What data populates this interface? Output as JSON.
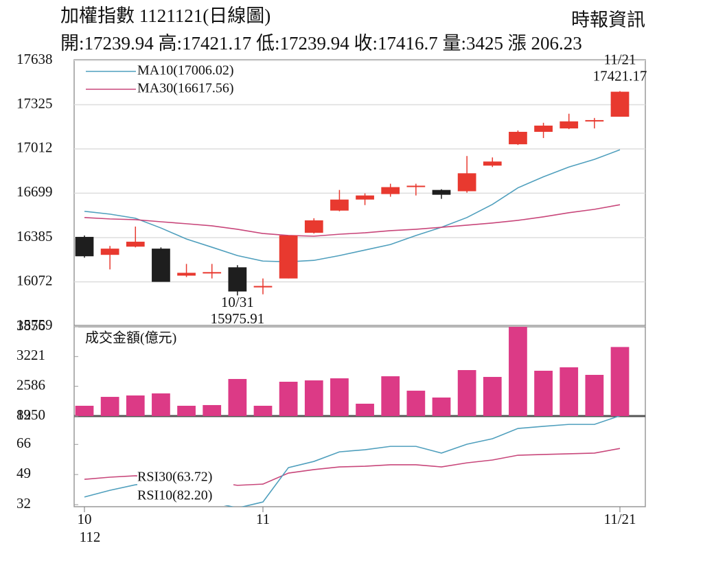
{
  "chart_data": [
    {
      "type": "candlestick",
      "title": "加權指數 1121121(日線圖)",
      "source": "時報資訊",
      "subtitle": "開:17239.94 高:17421.17 低:17239.94 收:17416.7 量:3425 漲 206.23",
      "open": [
        16390,
        16263,
        16321,
        16307,
        16116,
        16136,
        16175,
        16033,
        16096,
        16419,
        16576,
        16654,
        16693,
        16747,
        16722,
        16713,
        16894,
        17045,
        17133,
        17157,
        17211,
        17239.94
      ],
      "high": [
        16400,
        16326,
        16463,
        16316,
        16199,
        16199,
        16190,
        16096,
        16400,
        16522,
        16722,
        16698,
        16766,
        16766,
        16727,
        16962,
        16952,
        17143,
        17197,
        17261,
        17231,
        17421.17
      ],
      "low": [
        16243,
        16160,
        16316,
        16072,
        16106,
        16096,
        15975.91,
        15984,
        16096,
        16414,
        16571,
        16615,
        16674,
        16683,
        16659,
        16703,
        16884,
        17040,
        17089,
        17152,
        17157,
        17239.94
      ],
      "close": [
        16253,
        16307,
        16356,
        16072,
        16136,
        16141,
        16004,
        16043,
        16400,
        16507,
        16654,
        16683,
        16742,
        16752,
        16688,
        16840,
        16923,
        17133,
        17177,
        17207,
        17216,
        17416.7
      ],
      "up_color": "#e8392f",
      "down_color": "#1e1e1e",
      "series": [
        {
          "name": "MA10(17006.02)",
          "color": "#4f9fbd",
          "values": [
            16571,
            16551,
            16522,
            16453,
            16375,
            16317,
            16258,
            16219,
            16214,
            16224,
            16258,
            16297,
            16336,
            16400,
            16458,
            16527,
            16620,
            16737,
            16815,
            16884,
            16938,
            17006.02
          ]
        },
        {
          "name": "MA30(16617.56)",
          "color": "#c8467a",
          "values": [
            16527,
            16517,
            16512,
            16497,
            16483,
            16468,
            16444,
            16414,
            16400,
            16395,
            16409,
            16419,
            16434,
            16444,
            16458,
            16473,
            16488,
            16507,
            16532,
            16561,
            16585,
            16617.56
          ]
        }
      ],
      "annotations": [
        {
          "label": "10/31",
          "value": 15975.91
        },
        {
          "label": "11/21",
          "value": 17421.17
        }
      ],
      "ylim": [
        15759,
        17638
      ],
      "yticks": [
        15759,
        16072,
        16385,
        16699,
        17012,
        17325,
        17638
      ],
      "grid": true
    },
    {
      "type": "bar",
      "title": "成交金額(億元)",
      "values": [
        2170,
        2360,
        2390,
        2434,
        2170,
        2185,
        2742,
        2170,
        2683,
        2712,
        2756,
        2214,
        2800,
        2492,
        2346,
        2932,
        2786,
        3856,
        2918,
        2991,
        2830,
        3425
      ],
      "color": "#dc3a86",
      "ylim": [
        1950,
        3856
      ],
      "yticks": [
        1950,
        2586,
        3221,
        3856
      ]
    },
    {
      "type": "line",
      "categories": [
        "10",
        null,
        null,
        null,
        null,
        null,
        null,
        "11",
        null,
        null,
        null,
        null,
        null,
        null,
        null,
        null,
        null,
        null,
        null,
        null,
        null,
        "11/21"
      ],
      "year_label": "112",
      "series": [
        {
          "name": "RSI30(63.72)",
          "color": "#c8467a",
          "values": [
            46.3,
            47.5,
            48.3,
            47.0,
            46.0,
            45.0,
            42.9,
            43.6,
            49.8,
            51.8,
            53.3,
            53.7,
            54.5,
            54.5,
            53.3,
            55.6,
            57.2,
            59.9,
            60.3,
            60.7,
            61.1,
            63.72
          ]
        },
        {
          "name": "RSI10(82.20)",
          "color": "#4f9fbd",
          "values": [
            36.3,
            40.1,
            43.2,
            44.5,
            38.0,
            33.5,
            30.1,
            33.5,
            52.9,
            56.4,
            61.8,
            63.0,
            64.9,
            64.9,
            61.1,
            66.1,
            69.2,
            75.0,
            76.2,
            77.3,
            77.3,
            82.2
          ]
        }
      ],
      "ylim": [
        32,
        82
      ],
      "yticks": [
        32,
        49,
        66,
        82
      ]
    }
  ]
}
